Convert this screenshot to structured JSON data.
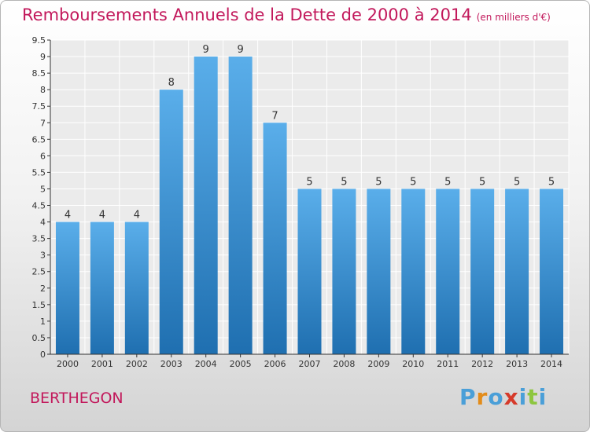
{
  "title": "Remboursements Annuels de la Dette de 2000 à 2014",
  "unit": "(en milliers d'€)",
  "commune": "BERTHEGON",
  "logo_text": "Proxiti",
  "colors": {
    "title": "#c2185b",
    "bar_top": "#5aaeea",
    "bar_bottom": "#1f6fb0",
    "logo": [
      "#4a9fd8",
      "#e38c1a",
      "#4a9fd8",
      "#d63a2a",
      "#4a9fd8",
      "#8dc63f",
      "#4a9fd8"
    ]
  },
  "chart_data": {
    "type": "bar",
    "title": "Remboursements Annuels de la Dette de 2000 à 2014",
    "xlabel": "",
    "ylabel": "",
    "categories": [
      "2000",
      "2001",
      "2002",
      "2003",
      "2004",
      "2005",
      "2006",
      "2007",
      "2008",
      "2009",
      "2010",
      "2011",
      "2012",
      "2013",
      "2014"
    ],
    "values": [
      4,
      4,
      4,
      8,
      9,
      9,
      7,
      5,
      5,
      5,
      5,
      5,
      5,
      5,
      5
    ],
    "ylim": [
      0,
      9.5
    ],
    "yticks": [
      0,
      0.5,
      1,
      1.5,
      2,
      2.5,
      3,
      3.5,
      4,
      4.5,
      5,
      5.5,
      6,
      6.5,
      7,
      7.5,
      8,
      8.5,
      9,
      9.5
    ],
    "ytick_labels": [
      "0",
      "0.5",
      "1",
      "1.5",
      "2",
      "2.5",
      "3",
      "3.5",
      "4",
      "4.5",
      "5",
      "5.5",
      "6",
      "6.5",
      "7",
      "7.5",
      "8",
      "8.5",
      "9",
      "9.5"
    ],
    "grid": true,
    "data_labels": true
  }
}
